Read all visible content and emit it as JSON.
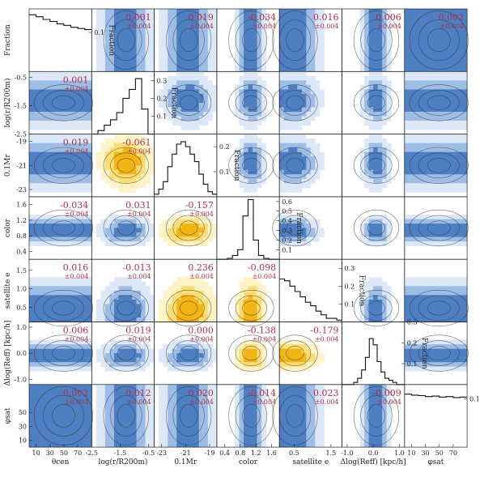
{
  "chart_data": {
    "type": "corner",
    "colors": {
      "blue_light": "#dce8f7",
      "blue_mid": "#9dbde6",
      "blue_dark": "#4d7fc2",
      "yellow_light": "#fdf3c6",
      "yellow_mid": "#fbdd75",
      "yellow_dark": "#f2b515",
      "correlation_text": "#b0304a",
      "line": "#111111"
    },
    "params": [
      {
        "id": "theta_cen",
        "label": "θcen",
        "range": [
          0,
          90
        ],
        "ticks": [
          "10",
          "30",
          "50",
          "70"
        ],
        "tick_values": [
          10,
          30,
          50,
          70
        ]
      },
      {
        "id": "logr",
        "label": "log(r/R200m)",
        "range": [
          -2.5,
          -0.3
        ],
        "ticks": [
          "-2.5",
          "-1.5",
          "-0.5"
        ],
        "tick_values": [
          -2.5,
          -1.5,
          -0.5
        ]
      },
      {
        "id": "mr",
        "label": "0.1Mr",
        "range": [
          -23.6,
          -18.4
        ],
        "ticks": [
          "-23",
          "-21",
          "-19"
        ],
        "tick_values": [
          -23,
          -21,
          -19
        ]
      },
      {
        "id": "color",
        "label": "color",
        "range": [
          0.2,
          1.8
        ],
        "ticks": [
          "0.4",
          "0.8",
          "1.2",
          "1.6"
        ],
        "tick_values": [
          0.4,
          0.8,
          1.2,
          1.6
        ]
      },
      {
        "id": "sat_e",
        "label": "satellite e",
        "range": [
          0.1,
          1.8
        ],
        "ticks": [
          "0.5",
          "1.5"
        ],
        "tick_values": [
          0.5,
          1.5
        ]
      },
      {
        "id": "dlogreff",
        "label": "Δlog(Reff) [kpc/h]",
        "range": [
          -1.2,
          1.2
        ],
        "ticks": [
          "-1.0",
          "0.0",
          "1.0"
        ],
        "tick_values": [
          -1.0,
          0.0,
          1.0
        ]
      },
      {
        "id": "phi_sat",
        "label": "φsat",
        "range": [
          0,
          90
        ],
        "ticks": [
          "10",
          "30",
          "50",
          "70"
        ],
        "tick_values": [
          10,
          30,
          50,
          70
        ]
      }
    ],
    "y_labels": [
      "Fraction",
      "log(r/R200m)",
      "0.1Mr",
      "color",
      "satellite e",
      "Δlog(Reff) [kpc/h]",
      "φsat"
    ],
    "y_ticks": {
      "logr": {
        "labels": [
          "-2.5",
          "-1.5",
          "-0.5"
        ],
        "values": [
          -2.5,
          -1.5,
          -0.5
        ]
      },
      "mr": {
        "labels": [
          "-23",
          "-21",
          "-19"
        ],
        "values": [
          -23,
          -21,
          -19
        ]
      },
      "color": {
        "labels": [
          "0.4",
          "0.8",
          "1.2",
          "1.6"
        ],
        "values": [
          0.4,
          0.8,
          1.2,
          1.6
        ]
      },
      "sat_e": {
        "labels": [
          "0.5",
          "1.0",
          "1.5"
        ],
        "values": [
          0.5,
          1.0,
          1.5
        ]
      },
      "dlogreff": {
        "labels": [
          "-1.0",
          "0.0",
          "1.0"
        ],
        "values": [
          -1.0,
          0.0,
          1.0
        ]
      },
      "phi_sat": {
        "labels": [
          "10",
          "30",
          "50"
        ],
        "values": [
          10,
          30,
          50
        ]
      }
    },
    "hist_fraction_ticks": [
      {
        "labels": [
          "0.1"
        ],
        "values": [
          0.1
        ],
        "max": 0.16
      },
      {
        "labels": [
          "0.1",
          "0.2",
          "0.3"
        ],
        "values": [
          0.1,
          0.2,
          0.3
        ],
        "max": 0.35
      },
      {
        "labels": [
          "0.1",
          "0.2"
        ],
        "values": [
          0.1,
          0.2
        ],
        "max": 0.25
      },
      {
        "labels": [
          "0.1",
          "0.2",
          "0.3",
          "0.4",
          "0.5",
          "0.6"
        ],
        "values": [
          0.1,
          0.2,
          0.3,
          0.4,
          0.5,
          0.6
        ],
        "max": 0.65
      },
      {
        "labels": [
          "0.1",
          "0.2",
          "0.3"
        ],
        "values": [
          0.1,
          0.2,
          0.3
        ],
        "max": 0.35
      },
      {
        "labels": [
          "0.1",
          "0.2",
          "0.3"
        ],
        "values": [
          0.1,
          0.2,
          0.3
        ],
        "max": 0.3
      },
      {
        "labels": [
          "0.1"
        ],
        "values": [
          0.1
        ],
        "max": 0.13
      }
    ],
    "histograms": [
      [
        0.145,
        0.14,
        0.133,
        0.128,
        0.122,
        0.118,
        0.113,
        0.11,
        0.107
      ],
      [
        0.0,
        0.02,
        0.05,
        0.08,
        0.12,
        0.2,
        0.25,
        0.31,
        0.14,
        0.0
      ],
      [
        0.01,
        0.03,
        0.06,
        0.12,
        0.17,
        0.21,
        0.22,
        0.2,
        0.17,
        0.14,
        0.09,
        0.05,
        0.02,
        0.01
      ],
      [
        0.0,
        0.0,
        0.01,
        0.04,
        0.1,
        0.45,
        0.62,
        0.2,
        0.04,
        0.01,
        0.0,
        0.0
      ],
      [
        0.24,
        0.23,
        0.2,
        0.17,
        0.14,
        0.11,
        0.09,
        0.06,
        0.04,
        0.02,
        0.02,
        0.01
      ],
      [
        0.0,
        0.0,
        0.0,
        0.01,
        0.03,
        0.07,
        0.13,
        0.22,
        0.19,
        0.11,
        0.06,
        0.03,
        0.02,
        0.01,
        0.0,
        0.0
      ],
      [
        0.11,
        0.108,
        0.107,
        0.105,
        0.106,
        0.104,
        0.105,
        0.103,
        0.104
      ]
    ],
    "correlations": [
      {
        "row": 0,
        "col": 1,
        "value": "0.001",
        "err": "±0.004"
      },
      {
        "row": 0,
        "col": 2,
        "value": "0.019",
        "err": "±0.004"
      },
      {
        "row": 0,
        "col": 3,
        "value": "-0.034",
        "err": "±0.004"
      },
      {
        "row": 0,
        "col": 4,
        "value": "0.016",
        "err": "±0.004"
      },
      {
        "row": 0,
        "col": 5,
        "value": "0.006",
        "err": "±0.004"
      },
      {
        "row": 0,
        "col": 6,
        "value": "0.002",
        "err": "±0.004"
      },
      {
        "row": 1,
        "col": 0,
        "value": "0.001",
        "err": "±0.004"
      },
      {
        "row": 2,
        "col": 0,
        "value": "0.019",
        "err": "±0.004"
      },
      {
        "row": 2,
        "col": 1,
        "value": "-0.061",
        "err": "±0.004"
      },
      {
        "row": 3,
        "col": 0,
        "value": "-0.034",
        "err": "±0.004"
      },
      {
        "row": 3,
        "col": 1,
        "value": "0.031",
        "err": "±0.004"
      },
      {
        "row": 3,
        "col": 2,
        "value": "-0.157",
        "err": "±0.004"
      },
      {
        "row": 4,
        "col": 0,
        "value": "0.016",
        "err": "±0.004"
      },
      {
        "row": 4,
        "col": 1,
        "value": "-0.013",
        "err": "±0.004"
      },
      {
        "row": 4,
        "col": 2,
        "value": "0.236",
        "err": "±0.004"
      },
      {
        "row": 4,
        "col": 3,
        "value": "-0.098",
        "err": "±0.004"
      },
      {
        "row": 5,
        "col": 0,
        "value": "0.006",
        "err": "±0.004"
      },
      {
        "row": 5,
        "col": 1,
        "value": "0.019",
        "err": "±0.004"
      },
      {
        "row": 5,
        "col": 2,
        "value": "0.000",
        "err": "±0.004"
      },
      {
        "row": 5,
        "col": 3,
        "value": "-0.138",
        "err": "±0.004"
      },
      {
        "row": 5,
        "col": 4,
        "value": "-0.179",
        "err": "±0.004"
      },
      {
        "row": 6,
        "col": 0,
        "value": "0.002",
        "err": "±0.004"
      },
      {
        "row": 6,
        "col": 1,
        "value": "0.012",
        "err": "±0.004"
      },
      {
        "row": 6,
        "col": 2,
        "value": "0.020",
        "err": "±0.004"
      },
      {
        "row": 6,
        "col": 3,
        "value": "-0.014",
        "err": "±0.004"
      },
      {
        "row": 6,
        "col": 4,
        "value": "0.023",
        "err": "±0.004"
      },
      {
        "row": 6,
        "col": 5,
        "value": "-0.009",
        "err": "±0.004"
      }
    ],
    "highlight_yellow": [
      [
        2,
        1
      ],
      [
        3,
        2
      ],
      [
        4,
        2
      ],
      [
        4,
        3
      ],
      [
        5,
        3
      ],
      [
        5,
        4
      ]
    ]
  }
}
